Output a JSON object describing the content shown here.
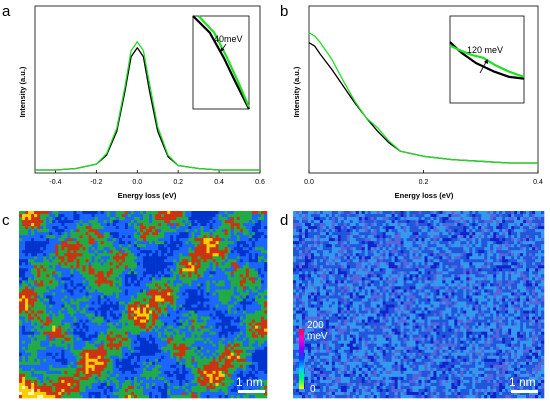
{
  "panels": {
    "a": {
      "letter": "a"
    },
    "b": {
      "letter": "b"
    },
    "c": {
      "letter": "c",
      "scalebar": "1 nm"
    },
    "d": {
      "letter": "d",
      "scalebar": "1 nm",
      "colorbar": {
        "max_label": "200",
        "unit_label": "meV",
        "min_label": "0"
      }
    }
  },
  "colors": {
    "black": "#000000",
    "green": "#22dd22"
  },
  "chart_data": [
    {
      "panel": "a",
      "type": "line",
      "xlabel": "Energy loss (eV)",
      "ylabel": "Intensity (a.u.)",
      "xlim": [
        -0.5,
        0.6
      ],
      "ylim": [
        0,
        1.12
      ],
      "xticks": [
        -0.4,
        -0.2,
        0.0,
        0.2,
        0.4,
        0.6
      ],
      "xtick_labels": [
        "-0.4",
        "-0.2",
        "0.0",
        "0.2",
        "0.4",
        "0.6"
      ],
      "series": [
        {
          "color": "#000000",
          "x": [
            -0.5,
            -0.4,
            -0.3,
            -0.2,
            -0.15,
            -0.1,
            -0.06,
            -0.03,
            0.0,
            0.03,
            0.06,
            0.1,
            0.15,
            0.2,
            0.3,
            0.4,
            0.5,
            0.6
          ],
          "y": [
            0.02,
            0.02,
            0.03,
            0.06,
            0.12,
            0.28,
            0.55,
            0.78,
            0.84,
            0.78,
            0.55,
            0.28,
            0.11,
            0.05,
            0.03,
            0.02,
            0.02,
            0.02
          ]
        },
        {
          "color": "#22dd22",
          "x": [
            -0.5,
            -0.4,
            -0.3,
            -0.2,
            -0.15,
            -0.1,
            -0.06,
            -0.03,
            0.0,
            0.03,
            0.06,
            0.1,
            0.15,
            0.2,
            0.3,
            0.4,
            0.5,
            0.6
          ],
          "y": [
            0.02,
            0.02,
            0.03,
            0.06,
            0.13,
            0.3,
            0.58,
            0.82,
            0.88,
            0.82,
            0.6,
            0.31,
            0.12,
            0.05,
            0.03,
            0.02,
            0.02,
            0.02
          ]
        }
      ],
      "inset": {
        "annotation": "40meV",
        "series": [
          {
            "color": "#000000",
            "x": [
              0.0,
              0.3,
              0.55,
              0.75,
              1.0
            ],
            "y": [
              1.0,
              0.82,
              0.55,
              0.3,
              0.0
            ]
          },
          {
            "color": "#22dd22",
            "x": [
              0.1,
              0.38,
              0.6,
              0.8,
              1.0
            ],
            "y": [
              1.0,
              0.82,
              0.56,
              0.3,
              0.02
            ]
          }
        ]
      }
    },
    {
      "panel": "b",
      "type": "line",
      "xlabel": "Energy loss (eV)",
      "ylabel": "Intensity (a.u.)",
      "xlim": [
        0.0,
        0.4
      ],
      "ylim": [
        0,
        1.0
      ],
      "xticks": [
        0.0,
        0.2,
        0.4
      ],
      "xtick_labels": [
        "0.0",
        "0.2",
        "0.4"
      ],
      "series": [
        {
          "color": "#000000",
          "x": [
            0.0,
            0.01,
            0.02,
            0.04,
            0.06,
            0.08,
            0.1,
            0.12,
            0.14,
            0.16,
            0.2,
            0.25,
            0.3,
            0.35,
            0.4
          ],
          "y": [
            0.78,
            0.76,
            0.71,
            0.62,
            0.52,
            0.42,
            0.33,
            0.25,
            0.18,
            0.13,
            0.1,
            0.08,
            0.07,
            0.06,
            0.06
          ]
        },
        {
          "color": "#22dd22",
          "x": [
            0.0,
            0.01,
            0.02,
            0.04,
            0.06,
            0.08,
            0.1,
            0.12,
            0.14,
            0.16,
            0.2,
            0.25,
            0.3,
            0.35,
            0.4
          ],
          "y": [
            0.84,
            0.82,
            0.78,
            0.68,
            0.55,
            0.43,
            0.33,
            0.27,
            0.19,
            0.13,
            0.1,
            0.08,
            0.07,
            0.06,
            0.06
          ]
        }
      ],
      "inset": {
        "annotation": "120 meV",
        "series": [
          {
            "color": "#000000",
            "x": [
              0.0,
              0.15,
              0.35,
              0.6,
              0.8,
              1.0
            ],
            "y": [
              0.7,
              0.58,
              0.46,
              0.36,
              0.3,
              0.28
            ]
          },
          {
            "color": "#22dd22",
            "x": [
              0.0,
              0.15,
              0.3,
              0.45,
              0.6,
              0.8,
              1.0
            ],
            "y": [
              0.66,
              0.6,
              0.55,
              0.52,
              0.44,
              0.36,
              0.3
            ]
          }
        ]
      }
    },
    {
      "panel": "c",
      "type": "heatmap",
      "colormap": [
        "#0033cc",
        "#1a66ff",
        "#22aa44",
        "#cc3311",
        "#ffcc00",
        "#ffffaa"
      ]
    },
    {
      "panel": "d",
      "type": "heatmap",
      "colormap": [
        "#1122cc",
        "#2255dd",
        "#3399ee",
        "#5566dd",
        "#aa44cc"
      ],
      "colorbar": [
        "#ffff00",
        "#00ff66",
        "#00ccff",
        "#0044ff",
        "#8800ff",
        "#ff00cc",
        "#ff0044"
      ]
    }
  ]
}
